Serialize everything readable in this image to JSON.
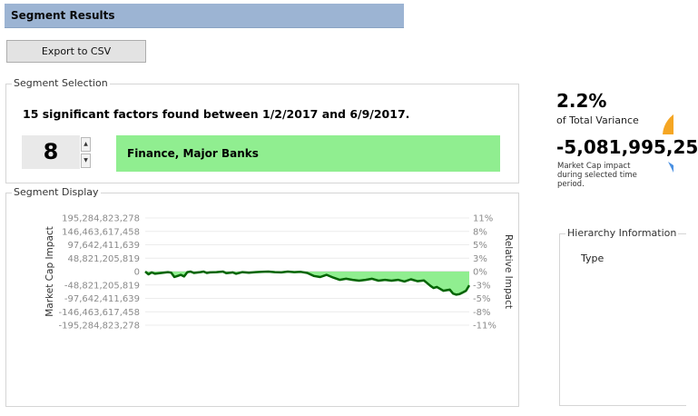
{
  "header": {
    "title": "Segment Results"
  },
  "toolbar": {
    "export_label": "Export to CSV"
  },
  "selection": {
    "legend": "Segment Selection",
    "factors_text": "15 significant factors found between 1/2/2017 and 6/9/2017.",
    "segment_number": "8",
    "up_glyph": "▲",
    "down_glyph": "▼",
    "segment_name": "Finance, Major Banks",
    "segment_color": "#90ee90"
  },
  "display": {
    "legend": "Segment Display"
  },
  "summary": {
    "variance_pct": "2.2%",
    "variance_label": "of Total Variance",
    "impact_value": "-5,081,995,25",
    "impact_label": "Market Cap impact during selected time period."
  },
  "hierarchy": {
    "legend": "Hierarchy Information",
    "type_label": "Type"
  },
  "chart_data": {
    "type": "area",
    "ylabel": "Market Cap Impact",
    "y2label": "Relative Impact",
    "y_ticks": [
      "195,284,823,278",
      "146,463,617,458",
      "97,642,411,639",
      "48,821,205,819",
      "0",
      "-48,821,205,819",
      "-97,642,411,639",
      "-146,463,617,458",
      "-195,284,823,278"
    ],
    "y2_ticks": [
      "11%",
      "8%",
      "5%",
      "3%",
      "0%",
      "-3%",
      "-5%",
      "-8%",
      "-11%"
    ],
    "ylim": [
      -195284823278,
      195284823278
    ],
    "x_range": [
      0,
      100
    ],
    "fill_color": "#90ee90",
    "line_color": "#006400",
    "series": [
      {
        "x": [
          0,
          1,
          2,
          3,
          5,
          7,
          8,
          9,
          10,
          11,
          12,
          13,
          14,
          15,
          17,
          18,
          19,
          20,
          22,
          24,
          25,
          27,
          28,
          30,
          32,
          34,
          36,
          38,
          40,
          42,
          44,
          46,
          48,
          50,
          52,
          54,
          56,
          58,
          60,
          62,
          64,
          66,
          68,
          70,
          72,
          74,
          76,
          78,
          80,
          82,
          84,
          86,
          88,
          89,
          90,
          92,
          94,
          95,
          96,
          97,
          98,
          99,
          100
        ],
        "y": [
          0,
          -10000000000,
          -3000000000,
          -8000000000,
          -5000000000,
          -2000000000,
          -4000000000,
          -20000000000,
          -16000000000,
          -12000000000,
          -18000000000,
          -2000000000,
          0,
          -5000000000,
          -2000000000,
          0,
          -5000000000,
          -3000000000,
          -2000000000,
          0,
          -6000000000,
          -3000000000,
          -8000000000,
          -2000000000,
          -4000000000,
          -2000000000,
          -1000000000,
          0,
          -2000000000,
          -3000000000,
          0,
          -2000000000,
          -1000000000,
          -5000000000,
          -16000000000,
          -20000000000,
          -12000000000,
          -22000000000,
          -30000000000,
          -26000000000,
          -30000000000,
          -33000000000,
          -30000000000,
          -26000000000,
          -33000000000,
          -30000000000,
          -33000000000,
          -30000000000,
          -36000000000,
          -28000000000,
          -35000000000,
          -32000000000,
          -52000000000,
          -60000000000,
          -56000000000,
          -70000000000,
          -66000000000,
          -80000000000,
          -84000000000,
          -82000000000,
          -76000000000,
          -70000000000,
          -50000000000
        ]
      }
    ]
  }
}
